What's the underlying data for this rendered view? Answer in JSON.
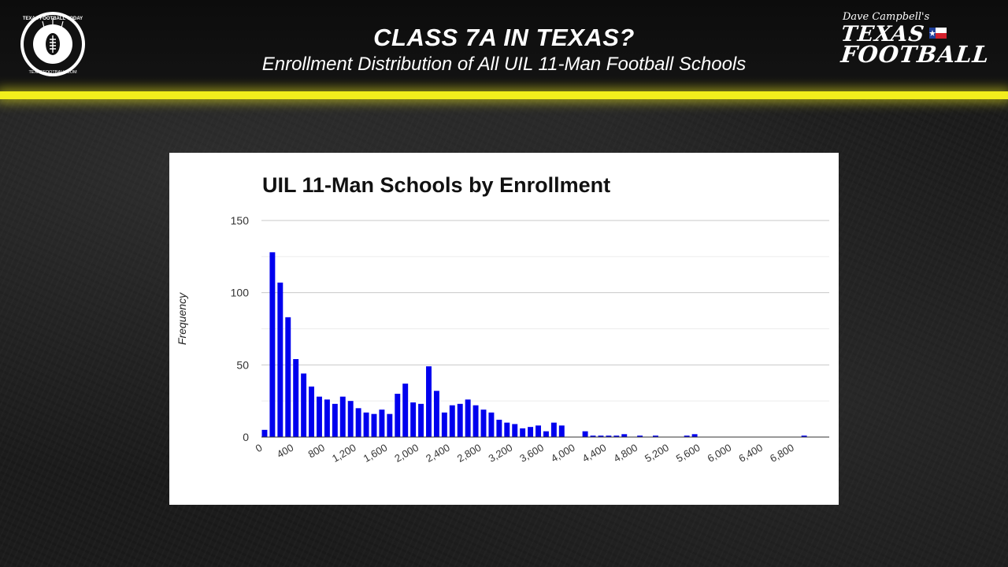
{
  "header": {
    "title": "CLASS 7A IN TEXAS?",
    "subtitle": "Enrollment Distribution of All UIL 11-Man Football Schools"
  },
  "logo_left": {
    "ring_text": "TEXAS FOOTBALL TODAY",
    "url_text": "TEXASFOOTBALL.COM"
  },
  "logo_right": {
    "line1": "Dave Campbell's",
    "line2": "TEXAS",
    "line3": "FOOTBALL"
  },
  "colors": {
    "accent": "#f2ee1c",
    "bar": "#0000ee",
    "grid": "#cccccc"
  },
  "chart_data": {
    "type": "bar",
    "title": "UIL 11-Man Schools by Enrollment",
    "xlabel": "",
    "ylabel": "Frequency",
    "ylim": [
      0,
      150
    ],
    "yticks": [
      0,
      50,
      100,
      150
    ],
    "grid": true,
    "bin_width": 100,
    "xlim": [
      0,
      7000
    ],
    "xticks": [
      "0",
      "400",
      "800",
      "1,200",
      "1,600",
      "2,000",
      "2,400",
      "2,800",
      "3,200",
      "3,600",
      "4,000",
      "4,400",
      "4,800",
      "5,200",
      "5,600",
      "6,000",
      "6,400",
      "6,800"
    ],
    "bins": [
      {
        "start": 0,
        "value": 5
      },
      {
        "start": 100,
        "value": 128
      },
      {
        "start": 200,
        "value": 107
      },
      {
        "start": 300,
        "value": 83
      },
      {
        "start": 400,
        "value": 54
      },
      {
        "start": 500,
        "value": 44
      },
      {
        "start": 600,
        "value": 35
      },
      {
        "start": 700,
        "value": 28
      },
      {
        "start": 800,
        "value": 26
      },
      {
        "start": 900,
        "value": 23
      },
      {
        "start": 1000,
        "value": 28
      },
      {
        "start": 1100,
        "value": 25
      },
      {
        "start": 1200,
        "value": 20
      },
      {
        "start": 1300,
        "value": 17
      },
      {
        "start": 1400,
        "value": 16
      },
      {
        "start": 1500,
        "value": 19
      },
      {
        "start": 1600,
        "value": 16
      },
      {
        "start": 1700,
        "value": 30
      },
      {
        "start": 1800,
        "value": 37
      },
      {
        "start": 1900,
        "value": 24
      },
      {
        "start": 2000,
        "value": 23
      },
      {
        "start": 2100,
        "value": 49
      },
      {
        "start": 2200,
        "value": 32
      },
      {
        "start": 2300,
        "value": 17
      },
      {
        "start": 2400,
        "value": 22
      },
      {
        "start": 2500,
        "value": 23
      },
      {
        "start": 2600,
        "value": 26
      },
      {
        "start": 2700,
        "value": 22
      },
      {
        "start": 2800,
        "value": 19
      },
      {
        "start": 2900,
        "value": 17
      },
      {
        "start": 3000,
        "value": 12
      },
      {
        "start": 3100,
        "value": 10
      },
      {
        "start": 3200,
        "value": 9
      },
      {
        "start": 3300,
        "value": 6
      },
      {
        "start": 3400,
        "value": 7
      },
      {
        "start": 3500,
        "value": 8
      },
      {
        "start": 3600,
        "value": 4
      },
      {
        "start": 3700,
        "value": 10
      },
      {
        "start": 3800,
        "value": 8
      },
      {
        "start": 4100,
        "value": 4
      },
      {
        "start": 4200,
        "value": 1
      },
      {
        "start": 4300,
        "value": 1
      },
      {
        "start": 4400,
        "value": 1
      },
      {
        "start": 4500,
        "value": 1
      },
      {
        "start": 4600,
        "value": 2
      },
      {
        "start": 4800,
        "value": 1
      },
      {
        "start": 5000,
        "value": 1
      },
      {
        "start": 5400,
        "value": 1
      },
      {
        "start": 5500,
        "value": 2
      },
      {
        "start": 6900,
        "value": 1
      }
    ]
  }
}
